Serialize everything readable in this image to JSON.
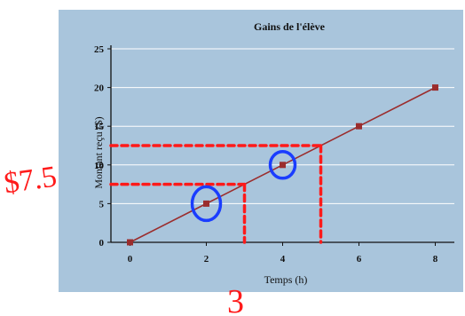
{
  "chart_data": {
    "type": "line",
    "title": "Gains de l'élève",
    "xlabel": "Temps (h)",
    "ylabel": "Montant reçu ($)",
    "x": [
      0,
      2,
      4,
      6,
      8
    ],
    "series": [
      {
        "values": [
          0,
          5,
          10,
          15,
          20
        ]
      }
    ],
    "xticks": [
      0,
      2,
      4,
      6,
      8
    ],
    "yticks": [
      0,
      5,
      10,
      15,
      20,
      25
    ],
    "xlim": [
      -0.5,
      8.5
    ],
    "ylim": [
      0,
      25
    ],
    "grid": "horizontal",
    "colors": {
      "panel": "#a9c5dc",
      "line": "#9b2d2d",
      "marker": "#9b2d2d",
      "grid": "#ffffff",
      "axis": "#111111"
    }
  },
  "annotations": {
    "dollar_label": "$7.5",
    "three_label": "3",
    "colors": {
      "dashes": "#ff1a1a",
      "circles": "#1a3dff"
    },
    "guides": [
      {
        "kind": "horizontal",
        "y": 7.5,
        "x_from": -0.5,
        "x_to": 3
      },
      {
        "kind": "vertical",
        "x": 3,
        "y_from": 7.5,
        "y_to": 0
      },
      {
        "kind": "horizontal",
        "y": 12.5,
        "x_from": -0.5,
        "x_to": 5
      },
      {
        "kind": "vertical",
        "x": 5,
        "y_from": 12.5,
        "y_to": 0
      }
    ],
    "circled_points": [
      {
        "x": 2,
        "y": 5
      },
      {
        "x": 4,
        "y": 10
      }
    ]
  }
}
